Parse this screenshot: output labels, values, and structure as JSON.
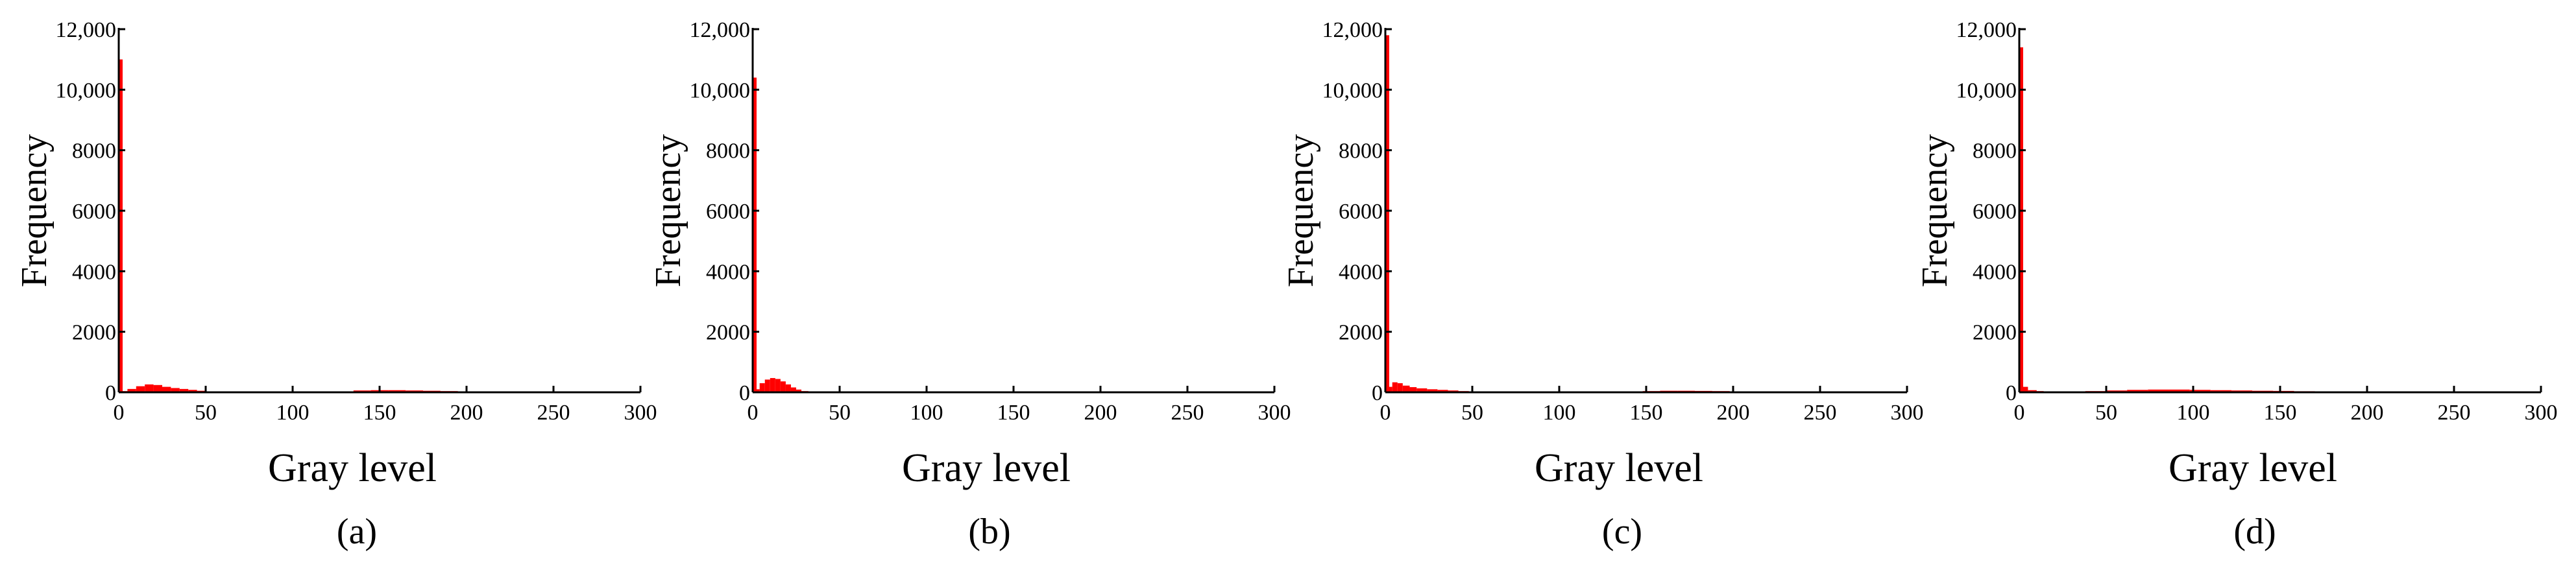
{
  "chart_data": [
    {
      "type": "bar",
      "caption": "(a)",
      "xlabel": "Gray level",
      "ylabel": "Frequency",
      "xlim": [
        0,
        300
      ],
      "ylim": [
        0,
        12000
      ],
      "xticks": [
        0,
        50,
        100,
        150,
        200,
        250,
        300
      ],
      "yticks": [
        0,
        2000,
        4000,
        6000,
        8000,
        10000,
        12000
      ],
      "xtick_labels": [
        "0",
        "50",
        "100",
        "150",
        "200",
        "250",
        "300"
      ],
      "ytick_labels": [
        "0",
        "2000",
        "4000",
        "6000",
        "8000",
        "10,000",
        "12,000"
      ],
      "bar_color": "#ff0000",
      "bins": [
        {
          "x": [
            0,
            0
          ],
          "y": 11000
        },
        {
          "x": [
            1,
            5
          ],
          "y": 40
        },
        {
          "x": [
            5,
            10
          ],
          "y": 110
        },
        {
          "x": [
            10,
            15
          ],
          "y": 200
        },
        {
          "x": [
            15,
            20
          ],
          "y": 260
        },
        {
          "x": [
            20,
            25
          ],
          "y": 240
        },
        {
          "x": [
            25,
            30
          ],
          "y": 180
        },
        {
          "x": [
            30,
            35
          ],
          "y": 140
        },
        {
          "x": [
            35,
            40
          ],
          "y": 110
        },
        {
          "x": [
            40,
            45
          ],
          "y": 80
        },
        {
          "x": [
            45,
            50
          ],
          "y": 50
        },
        {
          "x": [
            50,
            55
          ],
          "y": 25
        },
        {
          "x": [
            135,
            145
          ],
          "y": 60
        },
        {
          "x": [
            145,
            155
          ],
          "y": 70
        },
        {
          "x": [
            155,
            165
          ],
          "y": 70
        },
        {
          "x": [
            165,
            175
          ],
          "y": 60
        },
        {
          "x": [
            175,
            185
          ],
          "y": 50
        },
        {
          "x": [
            185,
            195
          ],
          "y": 40
        }
      ]
    },
    {
      "type": "bar",
      "caption": "(b)",
      "xlabel": "Gray level",
      "ylabel": "Frequency",
      "xlim": [
        0,
        300
      ],
      "ylim": [
        0,
        12000
      ],
      "xticks": [
        0,
        50,
        100,
        150,
        200,
        250,
        300
      ],
      "yticks": [
        0,
        2000,
        4000,
        6000,
        8000,
        10000,
        12000
      ],
      "xtick_labels": [
        "0",
        "50",
        "100",
        "150",
        "200",
        "250",
        "300"
      ],
      "ytick_labels": [
        "0",
        "2000",
        "4000",
        "6000",
        "8000",
        "10,000",
        "12,000"
      ],
      "bar_color": "#ff0000",
      "bins": [
        {
          "x": [
            0,
            0
          ],
          "y": 10400
        },
        {
          "x": [
            1,
            4
          ],
          "y": 100
        },
        {
          "x": [
            4,
            7
          ],
          "y": 300
        },
        {
          "x": [
            7,
            10
          ],
          "y": 420
        },
        {
          "x": [
            10,
            13
          ],
          "y": 470
        },
        {
          "x": [
            13,
            16
          ],
          "y": 440
        },
        {
          "x": [
            16,
            19
          ],
          "y": 360
        },
        {
          "x": [
            19,
            22
          ],
          "y": 260
        },
        {
          "x": [
            22,
            25
          ],
          "y": 160
        },
        {
          "x": [
            25,
            28
          ],
          "y": 90
        },
        {
          "x": [
            28,
            32
          ],
          "y": 40
        },
        {
          "x": [
            32,
            36
          ],
          "y": 15
        }
      ]
    },
    {
      "type": "bar",
      "caption": "(c)",
      "xlabel": "Gray level",
      "ylabel": "Frequency",
      "xlim": [
        0,
        300
      ],
      "ylim": [
        0,
        12000
      ],
      "xticks": [
        0,
        50,
        100,
        150,
        200,
        250,
        300
      ],
      "yticks": [
        0,
        2000,
        4000,
        6000,
        8000,
        10000,
        12000
      ],
      "xtick_labels": [
        "0",
        "50",
        "100",
        "150",
        "200",
        "250",
        "300"
      ],
      "ytick_labels": [
        "0",
        "2000",
        "4000",
        "6000",
        "8000",
        "10,000",
        "12,000"
      ],
      "bar_color": "#ff0000",
      "bins": [
        {
          "x": [
            0,
            0
          ],
          "y": 11800
        },
        {
          "x": [
            1,
            4
          ],
          "y": 180
        },
        {
          "x": [
            4,
            7
          ],
          "y": 330
        },
        {
          "x": [
            7,
            10
          ],
          "y": 300
        },
        {
          "x": [
            10,
            14
          ],
          "y": 220
        },
        {
          "x": [
            14,
            18
          ],
          "y": 170
        },
        {
          "x": [
            18,
            24
          ],
          "y": 130
        },
        {
          "x": [
            24,
            30
          ],
          "y": 100
        },
        {
          "x": [
            30,
            36
          ],
          "y": 80
        },
        {
          "x": [
            36,
            42
          ],
          "y": 60
        },
        {
          "x": [
            42,
            48
          ],
          "y": 40
        },
        {
          "x": [
            148,
            158
          ],
          "y": 40
        },
        {
          "x": [
            158,
            168
          ],
          "y": 50
        },
        {
          "x": [
            168,
            178
          ],
          "y": 50
        },
        {
          "x": [
            178,
            188
          ],
          "y": 45
        },
        {
          "x": [
            188,
            198
          ],
          "y": 40
        },
        {
          "x": [
            198,
            206
          ],
          "y": 30
        },
        {
          "x": [
            206,
            212
          ],
          "y": 20
        }
      ]
    },
    {
      "type": "bar",
      "caption": "(d)",
      "xlabel": "Gray level",
      "ylabel": "Frequency",
      "xlim": [
        0,
        300
      ],
      "ylim": [
        0,
        12000
      ],
      "xticks": [
        0,
        50,
        100,
        150,
        200,
        250,
        300
      ],
      "yticks": [
        0,
        2000,
        4000,
        6000,
        8000,
        10000,
        12000
      ],
      "xtick_labels": [
        "0",
        "50",
        "100",
        "150",
        "200",
        "250",
        "300"
      ],
      "ytick_labels": [
        "0",
        "2000",
        "4000",
        "6000",
        "8000",
        "10,000",
        "12,000"
      ],
      "bar_color": "#ff0000",
      "bins": [
        {
          "x": [
            0,
            0
          ],
          "y": 11400
        },
        {
          "x": [
            1,
            5
          ],
          "y": 180
        },
        {
          "x": [
            5,
            10
          ],
          "y": 70
        },
        {
          "x": [
            10,
            14
          ],
          "y": 40
        },
        {
          "x": [
            38,
            50
          ],
          "y": 40
        },
        {
          "x": [
            50,
            62
          ],
          "y": 60
        },
        {
          "x": [
            62,
            74
          ],
          "y": 80
        },
        {
          "x": [
            74,
            86
          ],
          "y": 90
        },
        {
          "x": [
            86,
            98
          ],
          "y": 90
        },
        {
          "x": [
            98,
            110
          ],
          "y": 80
        },
        {
          "x": [
            110,
            122
          ],
          "y": 70
        },
        {
          "x": [
            122,
            134
          ],
          "y": 60
        },
        {
          "x": [
            134,
            146
          ],
          "y": 50
        },
        {
          "x": [
            146,
            158
          ],
          "y": 45
        },
        {
          "x": [
            158,
            170
          ],
          "y": 35
        },
        {
          "x": [
            170,
            182
          ],
          "y": 25
        }
      ]
    }
  ]
}
